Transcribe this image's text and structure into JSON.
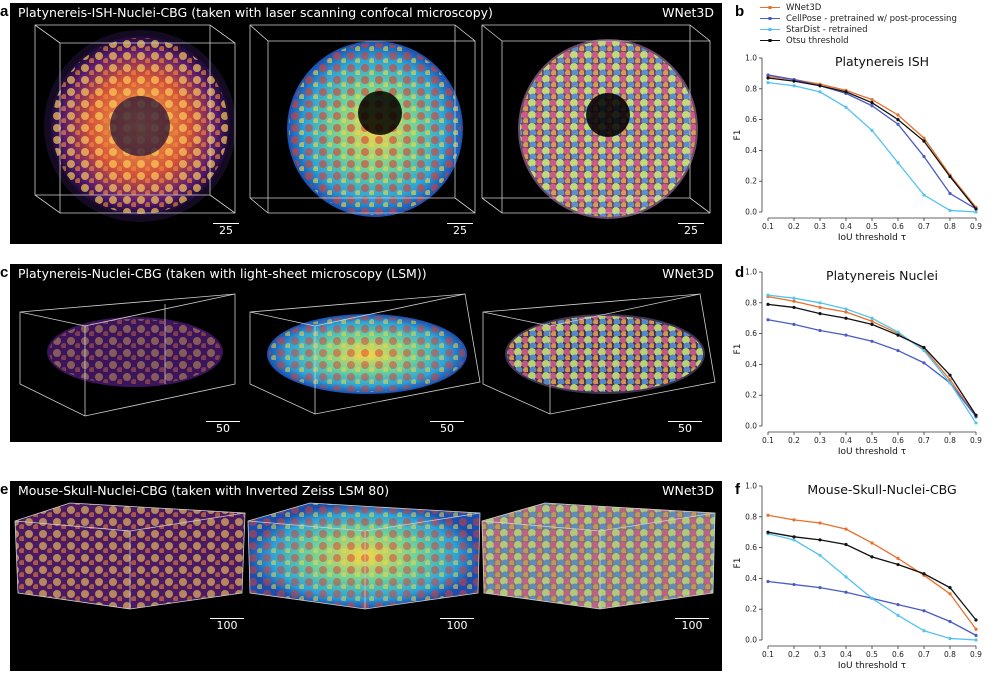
{
  "colors": {
    "wnet3d": "#E8702A",
    "cellpose": "#4B5BC6",
    "stardist": "#54C3EE",
    "otsu": "#111111"
  },
  "legend": [
    {
      "label": "WNet3D",
      "color": "#E8702A"
    },
    {
      "label": "CellPose - pretrained w/ post-processing",
      "color": "#4B5BC6"
    },
    {
      "label": "StarDist - retrained",
      "color": "#54C3EE"
    },
    {
      "label": "Otsu threshold",
      "color": "#111111"
    }
  ],
  "panels": {
    "a": {
      "letter": "a",
      "title": "Platynereis-ISH-Nuclei-CBG (taken with laser scanning confocal microscopy)",
      "brand": "WNet3D",
      "scales": [
        "25",
        "25",
        "25"
      ]
    },
    "b": {
      "letter": "b"
    },
    "c": {
      "letter": "c",
      "title": "Platynereis-Nuclei-CBG (taken with light-sheet microscopy (LSM))",
      "brand": "WNet3D",
      "scales": [
        "50",
        "50",
        "50"
      ]
    },
    "d": {
      "letter": "d"
    },
    "e": {
      "letter": "e",
      "title": "Mouse-Skull-Nuclei-CBG (taken with Inverted Zeiss LSM 80)",
      "brand": "WNet3D",
      "scales": [
        "100",
        "100",
        "100"
      ]
    },
    "f": {
      "letter": "f"
    }
  },
  "chart_data": [
    {
      "type": "line",
      "title": "Platynereis ISH",
      "xlabel": "IoU threshold τ",
      "ylabel": "F1",
      "x": [
        0.1,
        0.2,
        0.3,
        0.4,
        0.5,
        0.6,
        0.7,
        0.8,
        0.9
      ],
      "xlim": [
        0.1,
        0.9
      ],
      "ylim": [
        0.0,
        1.0
      ],
      "yticks": [
        "0.0",
        "0.2",
        "0.4",
        "0.6",
        "0.8",
        "1.0"
      ],
      "xticks": [
        "0.1",
        "0.2",
        "0.3",
        "0.4",
        "0.5",
        "0.6",
        "0.7",
        "0.8",
        "0.9"
      ],
      "series": [
        {
          "name": "WNet3D",
          "color": "#E8702A",
          "values": [
            0.88,
            0.86,
            0.83,
            0.79,
            0.73,
            0.63,
            0.48,
            0.24,
            0.03
          ]
        },
        {
          "name": "CellPose - pretrained w/ post-processing",
          "color": "#4B5BC6",
          "values": [
            0.89,
            0.86,
            0.82,
            0.77,
            0.69,
            0.57,
            0.36,
            0.12,
            0.02
          ]
        },
        {
          "name": "StarDist - retrained",
          "color": "#54C3EE",
          "values": [
            0.84,
            0.82,
            0.78,
            0.68,
            0.53,
            0.32,
            0.11,
            0.01,
            0.0
          ]
        },
        {
          "name": "Otsu threshold",
          "color": "#111111",
          "values": [
            0.87,
            0.85,
            0.82,
            0.78,
            0.71,
            0.6,
            0.46,
            0.23,
            0.02
          ]
        }
      ]
    },
    {
      "type": "line",
      "title": "Platynereis Nuclei",
      "xlabel": "IoU threshold τ",
      "ylabel": "F1",
      "x": [
        0.1,
        0.2,
        0.3,
        0.4,
        0.5,
        0.6,
        0.7,
        0.8,
        0.9
      ],
      "xlim": [
        0.1,
        0.9
      ],
      "ylim": [
        0.0,
        1.0
      ],
      "yticks": [
        "0.0",
        "0.2",
        "0.4",
        "0.6",
        "0.8",
        "1.0"
      ],
      "xticks": [
        "0.1",
        "0.2",
        "0.3",
        "0.4",
        "0.5",
        "0.6",
        "0.7",
        "0.8",
        "0.9"
      ],
      "series": [
        {
          "name": "WNet3D",
          "color": "#E8702A",
          "values": [
            0.84,
            0.81,
            0.77,
            0.74,
            0.68,
            0.6,
            0.5,
            0.3,
            0.06
          ]
        },
        {
          "name": "CellPose - pretrained w/ post-processing",
          "color": "#4B5BC6",
          "values": [
            0.69,
            0.66,
            0.62,
            0.59,
            0.55,
            0.49,
            0.41,
            0.28,
            0.06
          ]
        },
        {
          "name": "StarDist - retrained",
          "color": "#54C3EE",
          "values": [
            0.85,
            0.83,
            0.8,
            0.76,
            0.7,
            0.61,
            0.49,
            0.28,
            0.02
          ]
        },
        {
          "name": "Otsu threshold",
          "color": "#111111",
          "values": [
            0.79,
            0.77,
            0.73,
            0.7,
            0.66,
            0.59,
            0.51,
            0.33,
            0.07
          ]
        }
      ]
    },
    {
      "type": "line",
      "title": "Mouse-Skull-Nuclei-CBG",
      "xlabel": "IoU threshold τ",
      "ylabel": "F1",
      "x": [
        0.1,
        0.2,
        0.3,
        0.4,
        0.5,
        0.6,
        0.7,
        0.8,
        0.9
      ],
      "xlim": [
        0.1,
        0.9
      ],
      "ylim": [
        0.0,
        1.0
      ],
      "yticks": [
        "0.0",
        "0.2",
        "0.4",
        "0.6",
        "0.8",
        "1.0"
      ],
      "xticks": [
        "0.1",
        "0.2",
        "0.3",
        "0.4",
        "0.5",
        "0.6",
        "0.7",
        "0.8",
        "0.9"
      ],
      "series": [
        {
          "name": "WNet3D",
          "color": "#E8702A",
          "values": [
            0.81,
            0.78,
            0.76,
            0.72,
            0.63,
            0.53,
            0.42,
            0.3,
            0.07
          ]
        },
        {
          "name": "CellPose - pretrained w/ post-processing",
          "color": "#4B5BC6",
          "values": [
            0.38,
            0.36,
            0.34,
            0.31,
            0.27,
            0.23,
            0.19,
            0.12,
            0.03
          ]
        },
        {
          "name": "StarDist - retrained",
          "color": "#54C3EE",
          "values": [
            0.69,
            0.65,
            0.55,
            0.41,
            0.27,
            0.16,
            0.06,
            0.01,
            0.0
          ]
        },
        {
          "name": "Otsu threshold",
          "color": "#111111",
          "values": [
            0.7,
            0.67,
            0.65,
            0.62,
            0.54,
            0.49,
            0.43,
            0.34,
            0.13
          ]
        }
      ]
    }
  ]
}
